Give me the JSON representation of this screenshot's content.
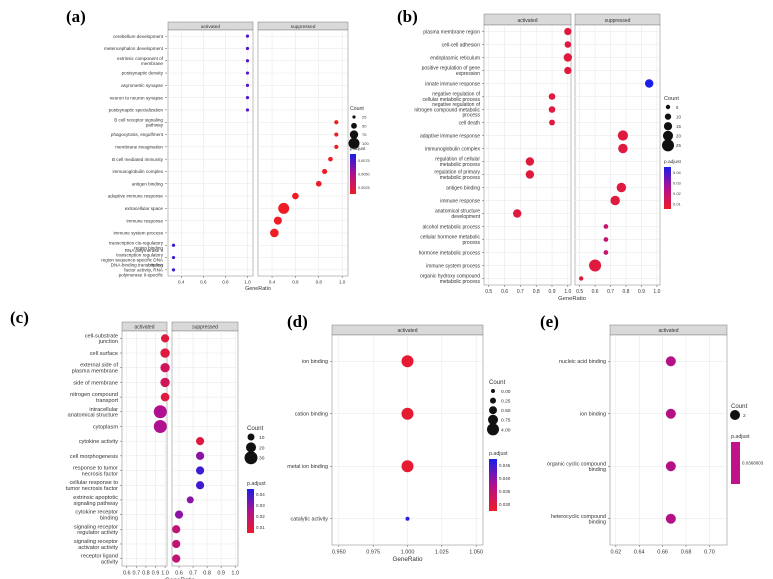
{
  "figure": {
    "labels": [
      "(a)",
      "(b)",
      "(c)",
      "(d)",
      "(e)"
    ]
  },
  "chart_data": [
    {
      "type": "scatter",
      "xlabel": "GeneRatio",
      "facets": [
        "activated",
        "suppressed"
      ],
      "xticks": [
        [
          0.4,
          0.6,
          0.8,
          1.0
        ],
        [
          0.4,
          0.6,
          0.8,
          1.0
        ]
      ],
      "xlim": [
        [
          0.28,
          1.05
        ],
        [
          0.28,
          1.05
        ]
      ],
      "categories": [
        "cerebellum development",
        "metencephalon development",
        "extrinsic component of membrane",
        "postsynaptic density",
        "asymmetric synapse",
        "neuron to neuron synapse",
        "postsynaptic specialization",
        "B cell receptor signaling pathway",
        "phagocytosis, engulfment",
        "membrane invagination",
        "B cell mediated immunity",
        "immunoglobulin complex",
        "antigen binding",
        "adaptive immune response",
        "extracellular space",
        "immune response",
        "immune system process",
        "transcription cis-regulatory region binding",
        "RNA polymerase II transcription regulatory region sequence-specific DNA binding",
        "DNA-binding transcription factor activity, RNA polymerase II-specific"
      ],
      "points": [
        {
          "term": "cerebellum development",
          "facet": "activated",
          "x": 1.0,
          "count": 20,
          "padj": 0.007
        },
        {
          "term": "metencephalon development",
          "facet": "activated",
          "x": 1.0,
          "count": 20,
          "padj": 0.007
        },
        {
          "term": "extrinsic component of membrane",
          "facet": "activated",
          "x": 1.0,
          "count": 20,
          "padj": 0.007
        },
        {
          "term": "postsynaptic density",
          "facet": "activated",
          "x": 1.0,
          "count": 20,
          "padj": 0.007
        },
        {
          "term": "asymmetric synapse",
          "facet": "activated",
          "x": 1.0,
          "count": 20,
          "padj": 0.007
        },
        {
          "term": "neuron to neuron synapse",
          "facet": "activated",
          "x": 1.0,
          "count": 20,
          "padj": 0.007
        },
        {
          "term": "postsynaptic specialization",
          "facet": "activated",
          "x": 1.0,
          "count": 20,
          "padj": 0.007
        },
        {
          "term": "B cell receptor signaling pathway",
          "facet": "suppressed",
          "x": 0.95,
          "count": 30,
          "padj": 0.0
        },
        {
          "term": "phagocytosis, engulfment",
          "facet": "suppressed",
          "x": 0.95,
          "count": 30,
          "padj": 0.0
        },
        {
          "term": "membrane invagination",
          "facet": "suppressed",
          "x": 0.95,
          "count": 30,
          "padj": 0.0
        },
        {
          "term": "B cell mediated immunity",
          "facet": "suppressed",
          "x": 0.9,
          "count": 35,
          "padj": 0.0
        },
        {
          "term": "immunoglobulin complex",
          "facet": "suppressed",
          "x": 0.85,
          "count": 40,
          "padj": 0.0
        },
        {
          "term": "antigen binding",
          "facet": "suppressed",
          "x": 0.8,
          "count": 45,
          "padj": 0.0
        },
        {
          "term": "adaptive immune response",
          "facet": "suppressed",
          "x": 0.6,
          "count": 55,
          "padj": 0.0
        },
        {
          "term": "extracellular space",
          "facet": "suppressed",
          "x": 0.5,
          "count": 100,
          "padj": 0.0
        },
        {
          "term": "immune response",
          "facet": "suppressed",
          "x": 0.45,
          "count": 70,
          "padj": 0.0
        },
        {
          "term": "immune system process",
          "facet": "suppressed",
          "x": 0.42,
          "count": 75,
          "padj": 0.0
        },
        {
          "term": "transcription cis-regulatory region binding",
          "facet": "activated",
          "x": 0.33,
          "count": 20,
          "padj": 0.0075
        },
        {
          "term": "RNA polymerase II transcription regulatory region sequence-specific DNA binding",
          "facet": "activated",
          "x": 0.33,
          "count": 20,
          "padj": 0.0075
        },
        {
          "term": "DNA-binding transcription factor activity, RNA polymerase II-specific",
          "facet": "activated",
          "x": 0.33,
          "count": 20,
          "padj": 0.0075
        }
      ],
      "legend": {
        "size_title": "Count",
        "size_values": [
          25,
          50,
          75,
          100
        ],
        "color_title": "p.adjust",
        "color_ticks": [
          "0.0075",
          "0.0050",
          "0.0025"
        ]
      }
    },
    {
      "type": "scatter",
      "xlabel": "GeneRatio",
      "facets": [
        "activated",
        "suppressed"
      ],
      "xticks": [
        [
          0.5,
          0.6,
          0.7,
          0.8,
          0.9,
          1.0
        ],
        [
          0.5,
          0.6,
          0.7,
          0.8,
          0.9,
          1.0
        ]
      ],
      "xlim": [
        [
          0.47,
          1.02
        ],
        [
          0.47,
          1.02
        ]
      ],
      "categories": [
        "plasma membrane region",
        "cell-cell adhesion",
        "endoplasmic reticulum",
        "positive regulation of gene expression",
        "innate immune response",
        "negative regulation of cellular metabolic process",
        "negative regulation of nitrogen compound metabolic process",
        "cell death",
        "adaptive immune response",
        "immunoglobulin complex",
        "regulation of cellular metabolic process",
        "regulation of primary metabolic process",
        "antigen binding",
        "immune response",
        "anatomical structure development",
        "alcohol metabolic process",
        "cellular hormone metabolic process",
        "hormone metabolic process",
        "immune system process",
        "organic hydroxy compound metabolic process"
      ],
      "points": [
        {
          "term": "plasma membrane region",
          "facet": "activated",
          "x": 1.0,
          "count": 12,
          "padj": 0.01
        },
        {
          "term": "cell-cell adhesion",
          "facet": "activated",
          "x": 1.0,
          "count": 10,
          "padj": 0.01
        },
        {
          "term": "endoplasmic reticulum",
          "facet": "activated",
          "x": 1.0,
          "count": 15,
          "padj": 0.01
        },
        {
          "term": "positive regulation of gene expression",
          "facet": "activated",
          "x": 1.0,
          "count": 12,
          "padj": 0.01
        },
        {
          "term": "innate immune response",
          "facet": "suppressed",
          "x": 0.95,
          "count": 15,
          "padj": 0.05
        },
        {
          "term": "negative regulation of cellular metabolic process",
          "facet": "activated",
          "x": 0.9,
          "count": 10,
          "padj": 0.01
        },
        {
          "term": "negative regulation of nitrogen compound metabolic process",
          "facet": "activated",
          "x": 0.9,
          "count": 10,
          "padj": 0.01
        },
        {
          "term": "cell death",
          "facet": "activated",
          "x": 0.9,
          "count": 8,
          "padj": 0.01
        },
        {
          "term": "adaptive immune response",
          "facet": "suppressed",
          "x": 0.78,
          "count": 20,
          "padj": 0.01
        },
        {
          "term": "immunoglobulin complex",
          "facet": "suppressed",
          "x": 0.78,
          "count": 18,
          "padj": 0.01
        },
        {
          "term": "regulation of cellular metabolic process",
          "facet": "activated",
          "x": 0.76,
          "count": 15,
          "padj": 0.01
        },
        {
          "term": "regulation of primary metabolic process",
          "facet": "activated",
          "x": 0.76,
          "count": 15,
          "padj": 0.01
        },
        {
          "term": "antigen binding",
          "facet": "suppressed",
          "x": 0.77,
          "count": 18,
          "padj": 0.01
        },
        {
          "term": "immune response",
          "facet": "suppressed",
          "x": 0.73,
          "count": 18,
          "padj": 0.01
        },
        {
          "term": "anatomical structure development",
          "facet": "activated",
          "x": 0.68,
          "count": 15,
          "padj": 0.01
        },
        {
          "term": "alcohol metabolic process",
          "facet": "suppressed",
          "x": 0.67,
          "count": 5,
          "padj": 0.02
        },
        {
          "term": "cellular hormone metabolic process",
          "facet": "suppressed",
          "x": 0.67,
          "count": 5,
          "padj": 0.02
        },
        {
          "term": "hormone metabolic process",
          "facet": "suppressed",
          "x": 0.67,
          "count": 5,
          "padj": 0.02
        },
        {
          "term": "immune system process",
          "facet": "suppressed",
          "x": 0.6,
          "count": 25,
          "padj": 0.01
        },
        {
          "term": "organic hydroxy compound metabolic process",
          "facet": "suppressed",
          "x": 0.51,
          "count": 4,
          "padj": 0.01
        }
      ],
      "legend": {
        "size_title": "Count",
        "size_values": [
          5,
          10,
          15,
          20,
          25
        ],
        "color_title": "p.adjust",
        "color_ticks": [
          "0.04",
          "0.03",
          "0.02",
          "0.01"
        ]
      }
    },
    {
      "type": "scatter",
      "xlabel": "GeneRatio",
      "facets": [
        "activated",
        "suppressed"
      ],
      "xticks": [
        [
          0.6,
          0.7,
          0.8,
          0.9,
          1.0
        ],
        [
          0.6,
          0.7,
          0.8,
          0.9,
          1.0
        ]
      ],
      "xlim": [
        [
          0.55,
          1.02
        ],
        [
          0.55,
          1.02
        ]
      ],
      "categories": [
        "cell-substrate junction",
        "cell surface",
        "external side of plasma membrane",
        "side of membrane",
        "nitrogen compound transport",
        "intracellular anatomical structure",
        "cytoplasm",
        "cytokine activity",
        "cell morphogenesis",
        "response to tumor necrosis factor",
        "cellular response to tumor necrosis factor",
        "extrinsic apoptotic signaling pathway",
        "cytokine receptor binding",
        "signaling receptor regulator activity",
        "signaling receptor activator activity",
        "receptor ligand activity"
      ],
      "points": [
        {
          "term": "cell-substrate junction",
          "facet": "activated",
          "x": 1.0,
          "count": 10,
          "padj": 0.01
        },
        {
          "term": "cell surface",
          "facet": "activated",
          "x": 1.0,
          "count": 15,
          "padj": 0.01
        },
        {
          "term": "external side of plasma membrane",
          "facet": "activated",
          "x": 1.0,
          "count": 15,
          "padj": 0.015
        },
        {
          "term": "side of membrane",
          "facet": "activated",
          "x": 1.0,
          "count": 15,
          "padj": 0.015
        },
        {
          "term": "nitrogen compound transport",
          "facet": "activated",
          "x": 1.0,
          "count": 12,
          "padj": 0.01
        },
        {
          "term": "intracellular anatomical structure",
          "facet": "activated",
          "x": 0.95,
          "count": 30,
          "padj": 0.025
        },
        {
          "term": "cytoplasm",
          "facet": "activated",
          "x": 0.95,
          "count": 30,
          "padj": 0.025
        },
        {
          "term": "cytokine activity",
          "facet": "suppressed",
          "x": 0.75,
          "count": 10,
          "padj": 0.01
        },
        {
          "term": "cell morphogenesis",
          "facet": "suppressed",
          "x": 0.75,
          "count": 10,
          "padj": 0.03
        },
        {
          "term": "response to tumor necrosis factor",
          "facet": "suppressed",
          "x": 0.75,
          "count": 10,
          "padj": 0.04
        },
        {
          "term": "cellular response to tumor necrosis factor",
          "facet": "suppressed",
          "x": 0.75,
          "count": 10,
          "padj": 0.04
        },
        {
          "term": "extrinsic apoptotic signaling pathway",
          "facet": "suppressed",
          "x": 0.68,
          "count": 5,
          "padj": 0.03
        },
        {
          "term": "cytokine receptor binding",
          "facet": "suppressed",
          "x": 0.6,
          "count": 10,
          "padj": 0.03
        },
        {
          "term": "signaling receptor regulator activity",
          "facet": "suppressed",
          "x": 0.58,
          "count": 10,
          "padj": 0.02
        },
        {
          "term": "signaling receptor activator activity",
          "facet": "suppressed",
          "x": 0.58,
          "count": 10,
          "padj": 0.02
        },
        {
          "term": "receptor ligand activity",
          "facet": "suppressed",
          "x": 0.58,
          "count": 10,
          "padj": 0.02
        }
      ],
      "legend": {
        "size_title": "Count",
        "size_values": [
          10,
          20,
          30
        ],
        "color_title": "p.adjust",
        "color_ticks": [
          "0.04",
          "0.03",
          "0.02",
          "0.01"
        ]
      }
    },
    {
      "type": "scatter",
      "xlabel": "GeneRatio",
      "facets": [
        "activated"
      ],
      "xticks": [
        [
          0.95,
          0.975,
          1.0,
          1.025,
          1.05
        ]
      ],
      "xtick_labels": [
        [
          "0.950",
          "0.975",
          "1.000",
          "1.025",
          "1.050"
        ]
      ],
      "xlim": [
        [
          0.945,
          1.055
        ]
      ],
      "categories": [
        "ion binding",
        "cation binding",
        "metal ion binding",
        "catalytic activity"
      ],
      "points": [
        {
          "term": "ion binding",
          "facet": "activated",
          "x": 1.0,
          "count": 4,
          "padj": 0.02
        },
        {
          "term": "cation binding",
          "facet": "activated",
          "x": 1.0,
          "count": 4,
          "padj": 0.02
        },
        {
          "term": "metal ion binding",
          "facet": "activated",
          "x": 1.0,
          "count": 4,
          "padj": 0.02
        },
        {
          "term": "catalytic activity",
          "facet": "activated",
          "x": 1.0,
          "count": 0,
          "padj": 0.046
        }
      ],
      "legend": {
        "size_title": "Count",
        "size_values": [
          "0.00",
          "0.25",
          "0.50",
          "0.75",
          "4.00"
        ],
        "color_title": "p.adjust",
        "color_ticks": [
          "0.045",
          "0.040",
          "0.035",
          "0.030"
        ]
      }
    },
    {
      "type": "scatter",
      "xlabel": "",
      "facets": [
        "activated"
      ],
      "xticks": [
        [
          0.62,
          0.64,
          0.66,
          0.68,
          0.7
        ]
      ],
      "xtick_labels": [
        [
          "0.62",
          "0.64",
          "0.66",
          "0.68",
          "0.70"
        ]
      ],
      "xlim": [
        [
          0.615,
          0.715
        ]
      ],
      "categories": [
        "nucleic acid binding",
        "ion binding",
        "organic cyclic compound binding",
        "heterocyclic compound binding"
      ],
      "points": [
        {
          "term": "nucleic acid binding",
          "facet": "activated",
          "x": 0.667,
          "count": 2,
          "padj": 0.0368
        },
        {
          "term": "ion binding",
          "facet": "activated",
          "x": 0.667,
          "count": 2,
          "padj": 0.0368
        },
        {
          "term": "organic cyclic compound binding",
          "facet": "activated",
          "x": 0.667,
          "count": 2,
          "padj": 0.0368
        },
        {
          "term": "heterocyclic compound binding",
          "facet": "activated",
          "x": 0.667,
          "count": 2,
          "padj": 0.0368
        }
      ],
      "legend": {
        "size_title": "Count",
        "size_values": [
          2
        ],
        "color_title": "p.adjust",
        "color_ticks": [
          "0.0368003"
        ]
      }
    }
  ]
}
